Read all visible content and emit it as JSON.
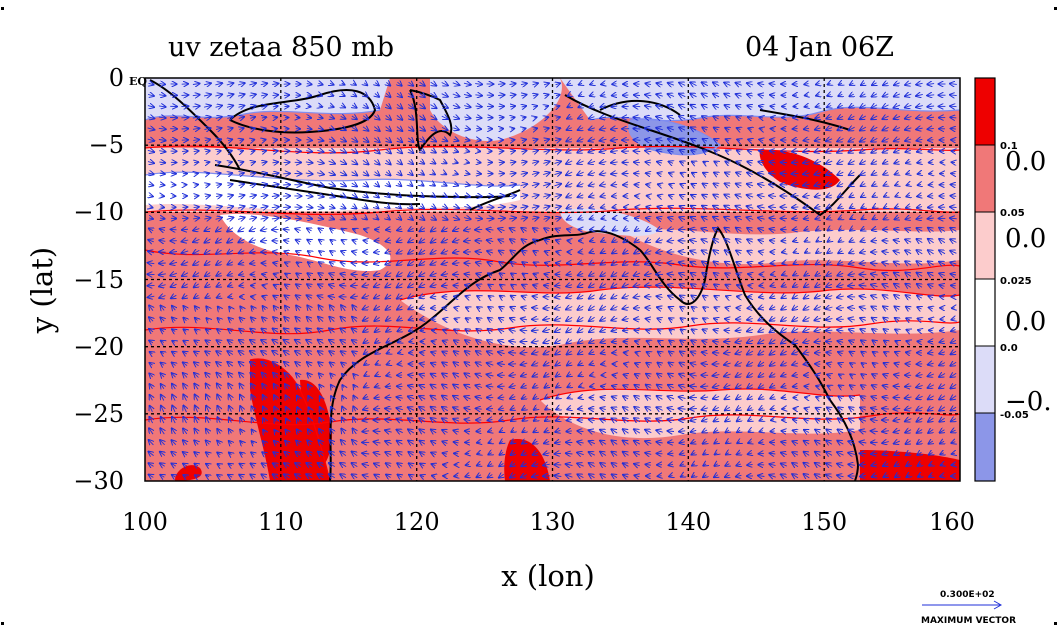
{
  "chart_data": {
    "type": "heatmap",
    "title_left": "uv zetaa 850 mb",
    "title_right": "04 Jan 06Z",
    "xlabel": "x (lon)",
    "ylabel": "y (lat)",
    "xlim": [
      100,
      160
    ],
    "ylim": [
      -30,
      0
    ],
    "x_ticks": [
      100,
      110,
      120,
      130,
      140,
      150,
      160
    ],
    "y_ticks": [
      0,
      -5,
      -10,
      -15,
      -20,
      -25,
      -30
    ],
    "y_tick_labels": [
      "0",
      "−5",
      "−10",
      "−15",
      "−20",
      "−25",
      "−30"
    ],
    "y_top_suffix": "EQ",
    "grid": true,
    "colorbar": {
      "position": "right",
      "levels": [
        -0.1,
        -0.05,
        0.0,
        0.025,
        0.05,
        0.1,
        0.15
      ],
      "colors": [
        "#8c96e8",
        "#dcdcf8",
        "#ffffff",
        "#fccccc",
        "#f07878",
        "#ee0000"
      ],
      "small_labels": [
        "0.1",
        "0.05",
        "0.025",
        "0.0",
        "-0.05"
      ],
      "large_labels": [
        "0.0",
        "0.0",
        "0.0",
        "−0."
      ]
    },
    "vector_legend": {
      "value": "0.300E+02",
      "label": "MAXIMUM VECTOR"
    },
    "colors": {
      "coast": "#000000",
      "contour": "#ff0000",
      "negative_contour": "#7f8cf0",
      "vectors": "#1f2fd8"
    }
  }
}
